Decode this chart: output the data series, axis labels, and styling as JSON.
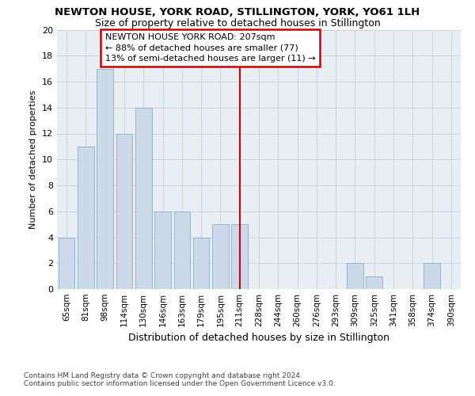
{
  "title": "NEWTON HOUSE, YORK ROAD, STILLINGTON, YORK, YO61 1LH",
  "subtitle": "Size of property relative to detached houses in Stillington",
  "xlabel": "Distribution of detached houses by size in Stillington",
  "ylabel": "Number of detached properties",
  "categories": [
    "65sqm",
    "81sqm",
    "98sqm",
    "114sqm",
    "130sqm",
    "146sqm",
    "163sqm",
    "179sqm",
    "195sqm",
    "211sqm",
    "228sqm",
    "244sqm",
    "260sqm",
    "276sqm",
    "293sqm",
    "309sqm",
    "325sqm",
    "341sqm",
    "358sqm",
    "374sqm",
    "390sqm"
  ],
  "values": [
    4,
    11,
    17,
    12,
    14,
    6,
    6,
    4,
    5,
    5,
    0,
    0,
    0,
    0,
    0,
    2,
    1,
    0,
    0,
    2,
    0
  ],
  "bar_color": "#ccd9e8",
  "bar_edge_color": "#8aaec8",
  "vline_index": 9,
  "annotation_text": "NEWTON HOUSE YORK ROAD: 207sqm\n← 88% of detached houses are smaller (77)\n13% of semi-detached houses are larger (11) →",
  "annotation_box_color": "#ffffff",
  "annotation_box_edge_color": "#cc0000",
  "vline_color": "#cc0000",
  "ylim": [
    0,
    20
  ],
  "yticks": [
    0,
    2,
    4,
    6,
    8,
    10,
    12,
    14,
    16,
    18,
    20
  ],
  "grid_color": "#c8d4e0",
  "plot_bg_color": "#e8eef4",
  "fig_bg_color": "#ffffff",
  "footer_text": "Contains HM Land Registry data © Crown copyright and database right 2024.\nContains public sector information licensed under the Open Government Licence v3.0.",
  "title_fontsize": 9.5,
  "subtitle_fontsize": 9,
  "xlabel_fontsize": 9,
  "ylabel_fontsize": 8,
  "annotation_fontsize": 8,
  "tick_fontsize": 7.5,
  "ytick_fontsize": 8,
  "footer_fontsize": 6.5
}
